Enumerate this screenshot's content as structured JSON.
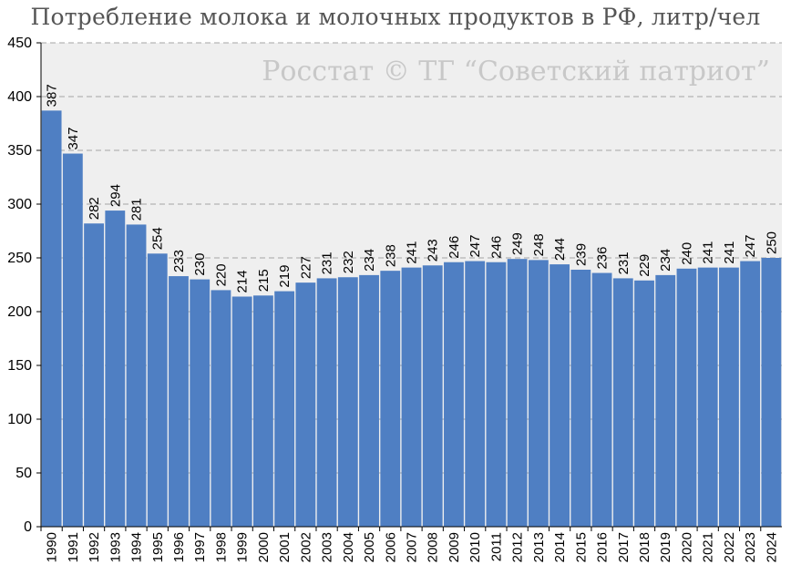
{
  "chart_data": {
    "type": "bar",
    "title": "Потребление молока и молочных продуктов в РФ, литр/чел",
    "watermark": "Росстат © ТГ “Советский патриот”",
    "categories": [
      "1990",
      "1991",
      "1992",
      "1993",
      "1994",
      "1995",
      "1996",
      "1997",
      "1998",
      "1999",
      "2000",
      "2001",
      "2002",
      "2003",
      "2004",
      "2005",
      "2006",
      "2007",
      "2008",
      "2009",
      "2010",
      "2011",
      "2012",
      "2013",
      "2014",
      "2015",
      "2016",
      "2017",
      "2018",
      "2019",
      "2020",
      "2021",
      "2022",
      "2023",
      "2024"
    ],
    "values": [
      387,
      347,
      282,
      294,
      281,
      254,
      233,
      230,
      220,
      214,
      215,
      219,
      227,
      231,
      232,
      234,
      238,
      241,
      243,
      246,
      247,
      246,
      249,
      248,
      244,
      239,
      236,
      231,
      229,
      234,
      240,
      241,
      241,
      247,
      250
    ],
    "ylim": [
      0,
      450
    ],
    "yticks": [
      0,
      50,
      100,
      150,
      200,
      250,
      300,
      350,
      400,
      450
    ],
    "xlabel": "",
    "ylabel": "",
    "grid": "horizontal-dashed",
    "colors": {
      "bar": "#4f7fc3",
      "plot_bg": "#efefef",
      "grid": "#a6a6a6",
      "title": "#555555",
      "watermark": "#c8c8c8"
    }
  }
}
